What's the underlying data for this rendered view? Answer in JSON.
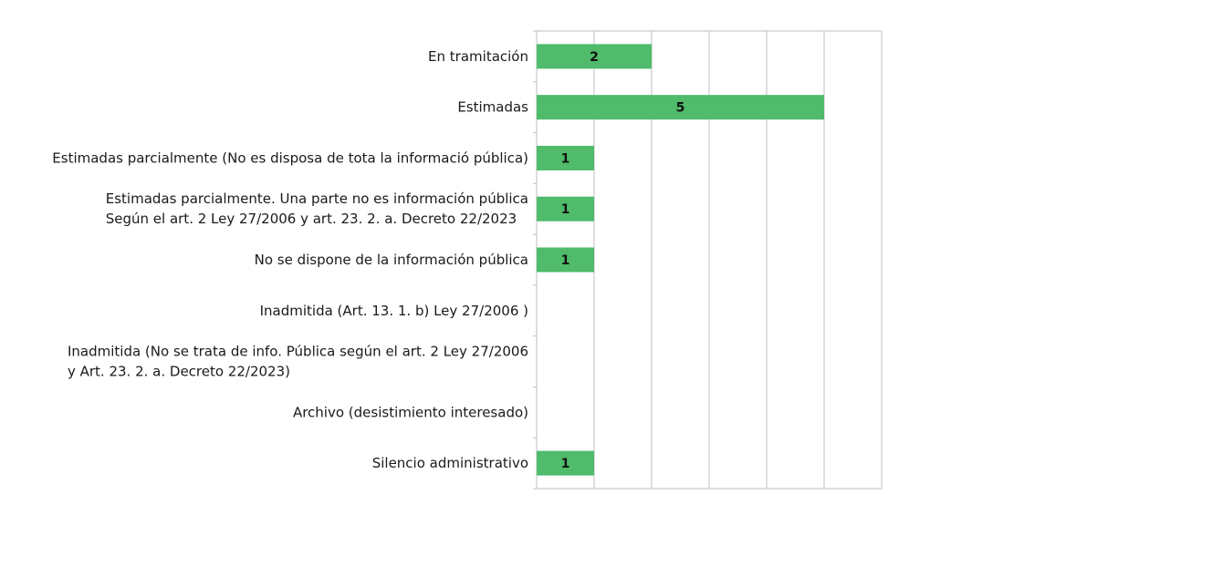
{
  "chart_data": {
    "type": "bar",
    "orientation": "horizontal",
    "title": "",
    "xlabel": "",
    "ylabel": "",
    "xlim": [
      0,
      6
    ],
    "grid": true,
    "legend": "none",
    "bar_color": "#4fbb6b",
    "categories": [
      [
        "En tramitación"
      ],
      [
        "Estimadas"
      ],
      [
        "Estimadas parcialmente (No es disposa de tota la informació pública)"
      ],
      [
        "Estimadas parcialmente. Una parte no es información pública",
        "Según el art. 2 Ley 27/2006 y art. 23. 2. a. Decreto 22/2023"
      ],
      [
        "No se dispone de la información pública"
      ],
      [
        "Inadmitida (Art. 13. 1. b) Ley 27/2006 )"
      ],
      [
        "Inadmitida (No se trata de info. Pública según el art. 2 Ley 27/2006",
        "y Art. 23. 2. a. Decreto 22/2023)"
      ],
      [
        "Archivo (desistimiento interesado)"
      ],
      [
        "Silencio administrativo"
      ]
    ],
    "values": [
      2,
      5,
      1,
      1,
      1,
      null,
      null,
      null,
      1
    ],
    "data_labels": [
      "2",
      "5",
      "1",
      "1",
      "1",
      "",
      "",
      "",
      "1"
    ]
  }
}
